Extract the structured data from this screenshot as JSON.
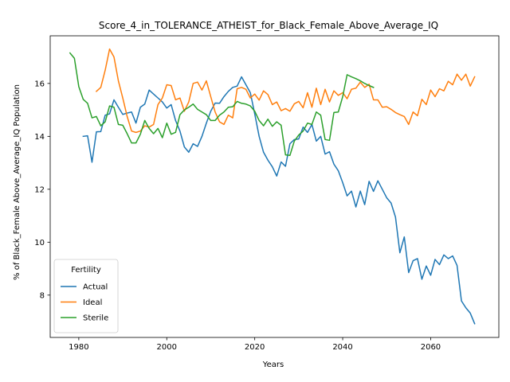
{
  "chart_data": {
    "type": "line",
    "title": "Score_4_in_TOLERANCE_ATHEIST_for_Black_Female_Above_Average_IQ",
    "xlabel": "Years",
    "ylabel": "% of Black_Female Above_Average_IQ Population",
    "xlim": [
      1973.5,
      2075.5
    ],
    "ylim": [
      6.4,
      17.8
    ],
    "xticks": [
      1980,
      2000,
      2020,
      2040,
      2060
    ],
    "yticks": [
      8,
      10,
      12,
      14,
      16
    ],
    "grid": false,
    "legend": {
      "title": "Fertility",
      "placement": "lower-left"
    },
    "series": [
      {
        "name": "Actual",
        "color": "#1f77b4",
        "x": [
          1981,
          1982,
          1983,
          1984,
          1985,
          1986,
          1987,
          1988,
          1989,
          1990,
          1991,
          1992,
          1993,
          1994,
          1995,
          1996,
          1997,
          1998,
          1999,
          2000,
          2001,
          2002,
          2003,
          2004,
          2005,
          2006,
          2007,
          2008,
          2009,
          2010,
          2011,
          2012,
          2013,
          2014,
          2015,
          2016,
          2017,
          2018,
          2019,
          2020,
          2021,
          2022,
          2023,
          2024,
          2025,
          2026,
          2027,
          2028,
          2029,
          2030,
          2031,
          2032,
          2033,
          2034,
          2035,
          2036,
          2037,
          2038,
          2039,
          2040,
          2041,
          2042,
          2043,
          2044,
          2045,
          2046,
          2047,
          2048,
          2049,
          2050,
          2051,
          2052,
          2053,
          2054,
          2055,
          2056,
          2057,
          2058,
          2059,
          2060,
          2061,
          2062,
          2063,
          2064,
          2065,
          2066,
          2067,
          2068,
          2069,
          2070
        ],
        "values": [
          14.0,
          14.02,
          13.02,
          14.17,
          14.18,
          14.8,
          14.85,
          15.38,
          15.1,
          14.83,
          14.88,
          14.92,
          14.5,
          15.1,
          15.22,
          15.75,
          15.6,
          15.45,
          15.3,
          15.07,
          15.2,
          14.6,
          14.2,
          13.6,
          13.4,
          13.72,
          13.62,
          14.0,
          14.5,
          14.95,
          15.26,
          15.25,
          15.5,
          15.7,
          15.85,
          15.9,
          16.25,
          15.95,
          15.65,
          14.85,
          14.0,
          13.4,
          13.1,
          12.85,
          12.5,
          13.03,
          12.87,
          13.72,
          13.88,
          13.9,
          14.35,
          14.15,
          14.45,
          13.82,
          14.0,
          13.33,
          13.42,
          12.95,
          12.7,
          12.25,
          11.75,
          11.93,
          11.33,
          11.93,
          11.42,
          12.3,
          11.92,
          12.32,
          12.0,
          11.68,
          11.48,
          10.95,
          9.6,
          10.2,
          8.85,
          9.3,
          9.38,
          8.6,
          9.1,
          8.75,
          9.35,
          9.15,
          9.52,
          9.38,
          9.48,
          9.12,
          7.78,
          7.52,
          7.32,
          6.92
        ]
      },
      {
        "name": "Ideal",
        "color": "#ff7f0e",
        "x": [
          1984,
          1985,
          1986,
          1987,
          1988,
          1989,
          1990,
          1991,
          1992,
          1993,
          1994,
          1995,
          1996,
          1997,
          1998,
          1999,
          2000,
          2001,
          2002,
          2003,
          2004,
          2005,
          2006,
          2007,
          2008,
          2009,
          2010,
          2011,
          2012,
          2013,
          2014,
          2015,
          2016,
          2017,
          2018,
          2019,
          2020,
          2021,
          2022,
          2023,
          2024,
          2025,
          2026,
          2027,
          2028,
          2029,
          2030,
          2031,
          2032,
          2033,
          2034,
          2035,
          2036,
          2037,
          2038,
          2039,
          2040,
          2041,
          2042,
          2043,
          2044,
          2045,
          2046,
          2047,
          2048,
          2049,
          2050,
          2051,
          2052,
          2053,
          2054,
          2055,
          2056,
          2057,
          2058,
          2059,
          2060,
          2061,
          2062,
          2063,
          2064,
          2065,
          2066,
          2067,
          2068,
          2069,
          2070
        ],
        "values": [
          15.7,
          15.85,
          16.5,
          17.3,
          17.0,
          16.1,
          15.45,
          14.75,
          14.2,
          14.15,
          14.2,
          14.4,
          14.35,
          14.45,
          15.2,
          15.45,
          15.95,
          15.92,
          15.38,
          15.45,
          14.95,
          15.3,
          16.0,
          16.05,
          15.75,
          16.1,
          15.5,
          14.92,
          14.55,
          14.45,
          14.8,
          14.7,
          15.8,
          15.85,
          15.78,
          15.45,
          15.6,
          15.37,
          15.72,
          15.58,
          15.2,
          15.3,
          14.97,
          15.05,
          14.95,
          15.23,
          15.32,
          15.08,
          15.65,
          15.1,
          15.82,
          15.2,
          15.78,
          15.3,
          15.72,
          15.55,
          15.65,
          15.42,
          15.78,
          15.82,
          16.05,
          15.85,
          15.97,
          15.38,
          15.38,
          15.1,
          15.12,
          15.02,
          14.9,
          14.82,
          14.75,
          14.45,
          14.92,
          14.78,
          15.4,
          15.2,
          15.75,
          15.5,
          15.8,
          15.72,
          16.08,
          15.95,
          16.35,
          16.12,
          16.35,
          15.9,
          16.25
        ]
      },
      {
        "name": "Sterile",
        "color": "#2ca02c",
        "x": [
          1978,
          1979,
          1980,
          1981,
          1982,
          1983,
          1984,
          1985,
          1986,
          1987,
          1988,
          1989,
          1990,
          1991,
          1992,
          1993,
          1994,
          1995,
          1996,
          1997,
          1998,
          1999,
          2000,
          2001,
          2002,
          2003,
          2004,
          2005,
          2006,
          2007,
          2008,
          2009,
          2010,
          2011,
          2012,
          2013,
          2014,
          2015,
          2016,
          2017,
          2018,
          2019,
          2020,
          2021,
          2022,
          2023,
          2024,
          2025,
          2026,
          2027,
          2028,
          2029,
          2030,
          2031,
          2032,
          2033,
          2034,
          2035,
          2036,
          2037,
          2038,
          2039,
          2040,
          2041,
          2042,
          2043,
          2044,
          2045,
          2046,
          2047
        ],
        "values": [
          17.15,
          16.95,
          15.88,
          15.4,
          15.25,
          14.7,
          14.75,
          14.4,
          14.55,
          15.15,
          15.1,
          14.45,
          14.42,
          14.1,
          13.75,
          13.75,
          14.08,
          14.6,
          14.3,
          14.1,
          14.3,
          13.95,
          14.5,
          14.08,
          14.15,
          14.82,
          15.0,
          15.1,
          15.22,
          15.02,
          14.92,
          14.82,
          14.6,
          14.6,
          14.8,
          14.92,
          15.1,
          15.12,
          15.32,
          15.25,
          15.22,
          15.15,
          14.95,
          14.6,
          14.4,
          14.65,
          14.38,
          14.55,
          14.42,
          13.3,
          13.28,
          13.82,
          14.05,
          14.2,
          14.5,
          14.45,
          14.92,
          14.8,
          13.88,
          13.85,
          14.9,
          14.92,
          15.5,
          16.33,
          16.25,
          16.18,
          16.1,
          16.0,
          15.92,
          15.85
        ]
      }
    ]
  }
}
